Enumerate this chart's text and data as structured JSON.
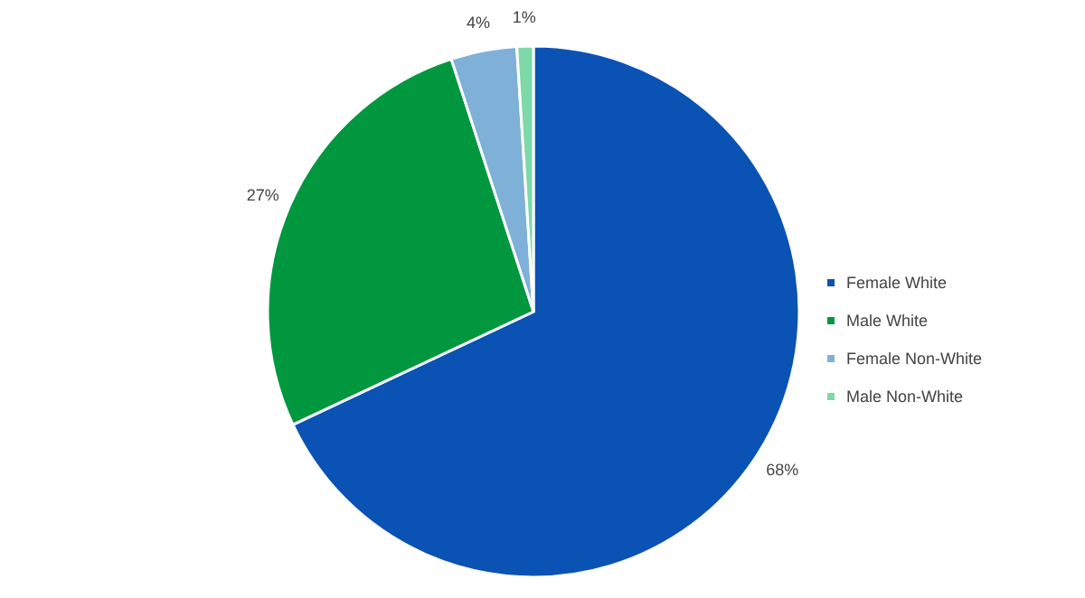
{
  "chart_data": {
    "type": "pie",
    "categories": [
      "Female White",
      "Male White",
      "Female Non-White",
      "Male Non-White"
    ],
    "values": [
      68,
      27,
      4,
      1
    ],
    "colors": [
      "#0a52b4",
      "#00973f",
      "#7fb0d8",
      "#7dd9a8"
    ],
    "value_labels": [
      "68%",
      "27%",
      "4%",
      "1%"
    ],
    "legend": "right"
  }
}
